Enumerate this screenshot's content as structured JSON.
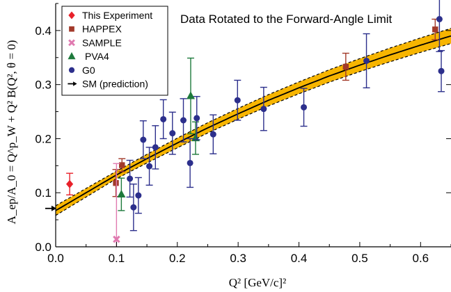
{
  "chart_data": {
    "type": "scatter",
    "title": "Data Rotated to the Forward-Angle Limit",
    "xlabel": "Q² [GeV/c]²",
    "ylabel": "A_ep/A_0 = Q^p_W + Q² B(Q², θ = 0)",
    "xlim": [
      0.0,
      0.65
    ],
    "ylim": [
      0.0,
      0.45
    ],
    "x_ticks": [
      "0.0",
      "0.1",
      "0.2",
      "0.3",
      "0.4",
      "0.5",
      "0.6"
    ],
    "y_ticks": [
      "0.0",
      "0.1",
      "0.2",
      "0.3",
      "0.4"
    ],
    "grid": false,
    "legend_position": "top-left",
    "series": [
      {
        "name": "This Experiment",
        "marker": "diamond",
        "color": "#e8212a",
        "points": [
          {
            "x": 0.023,
            "y": 0.116,
            "err": 0.02
          }
        ]
      },
      {
        "name": "HAPPEX",
        "marker": "square",
        "color": "#a23a2a",
        "points": [
          {
            "x": 0.099,
            "y": 0.118,
            "err": 0.025
          },
          {
            "x": 0.109,
            "y": 0.151,
            "err": 0.012
          },
          {
            "x": 0.477,
            "y": 0.333,
            "err": 0.025
          },
          {
            "x": 0.624,
            "y": 0.402,
            "err": 0.019
          }
        ]
      },
      {
        "name": "SAMPLE",
        "marker": "cross",
        "color": "#e07ab0",
        "points": [
          {
            "x": 0.1,
            "y": 0.014,
            "err": 0.14
          }
        ]
      },
      {
        "name": "PVA4",
        "marker": "triangle",
        "color": "#1e7a3c",
        "points": [
          {
            "x": 0.108,
            "y": 0.097,
            "err": 0.03
          },
          {
            "x": 0.222,
            "y": 0.279,
            "err": 0.07
          },
          {
            "x": 0.23,
            "y": 0.201,
            "err": 0.03
          }
        ]
      },
      {
        "name": "G0",
        "marker": "circle",
        "color": "#2c2f8c",
        "points": [
          {
            "x": 0.122,
            "y": 0.126,
            "err": 0.034
          },
          {
            "x": 0.128,
            "y": 0.073,
            "err": 0.043
          },
          {
            "x": 0.136,
            "y": 0.095,
            "err": 0.033
          },
          {
            "x": 0.144,
            "y": 0.198,
            "err": 0.035
          },
          {
            "x": 0.154,
            "y": 0.149,
            "err": 0.035
          },
          {
            "x": 0.164,
            "y": 0.184,
            "err": 0.04
          },
          {
            "x": 0.177,
            "y": 0.236,
            "err": 0.036
          },
          {
            "x": 0.192,
            "y": 0.21,
            "err": 0.039
          },
          {
            "x": 0.21,
            "y": 0.234,
            "err": 0.04
          },
          {
            "x": 0.221,
            "y": 0.155,
            "err": 0.045
          },
          {
            "x": 0.232,
            "y": 0.238,
            "err": 0.04
          },
          {
            "x": 0.259,
            "y": 0.208,
            "err": 0.036
          },
          {
            "x": 0.299,
            "y": 0.271,
            "err": 0.037
          },
          {
            "x": 0.342,
            "y": 0.255,
            "err": 0.04
          },
          {
            "x": 0.408,
            "y": 0.258,
            "err": 0.035
          },
          {
            "x": 0.511,
            "y": 0.344,
            "err": 0.05
          },
          {
            "x": 0.631,
            "y": 0.421,
            "err": 0.06
          },
          {
            "x": 0.634,
            "y": 0.325,
            "err": 0.038
          }
        ]
      },
      {
        "name": "SM (prediction)",
        "marker": "arrow",
        "color": "#000000",
        "points": [
          {
            "x": 0.0,
            "y": 0.071
          }
        ]
      }
    ],
    "fit": {
      "color": "#000000",
      "band_color": "#f7b500",
      "intercept": 0.067,
      "points": [
        {
          "x": 0.0,
          "y": 0.067
        },
        {
          "x": 0.05,
          "y": 0.1
        },
        {
          "x": 0.1,
          "y": 0.133
        },
        {
          "x": 0.15,
          "y": 0.163
        },
        {
          "x": 0.2,
          "y": 0.192
        },
        {
          "x": 0.25,
          "y": 0.22
        },
        {
          "x": 0.3,
          "y": 0.246
        },
        {
          "x": 0.35,
          "y": 0.271
        },
        {
          "x": 0.4,
          "y": 0.294
        },
        {
          "x": 0.45,
          "y": 0.316
        },
        {
          "x": 0.5,
          "y": 0.336
        },
        {
          "x": 0.55,
          "y": 0.355
        },
        {
          "x": 0.6,
          "y": 0.373
        },
        {
          "x": 0.65,
          "y": 0.39
        }
      ],
      "band_halfwidth": [
        {
          "x": 0.0,
          "y": 0.009
        },
        {
          "x": 0.1,
          "y": 0.007
        },
        {
          "x": 0.2,
          "y": 0.009
        },
        {
          "x": 0.3,
          "y": 0.01
        },
        {
          "x": 0.4,
          "y": 0.011
        },
        {
          "x": 0.5,
          "y": 0.012
        },
        {
          "x": 0.65,
          "y": 0.014
        }
      ]
    }
  }
}
